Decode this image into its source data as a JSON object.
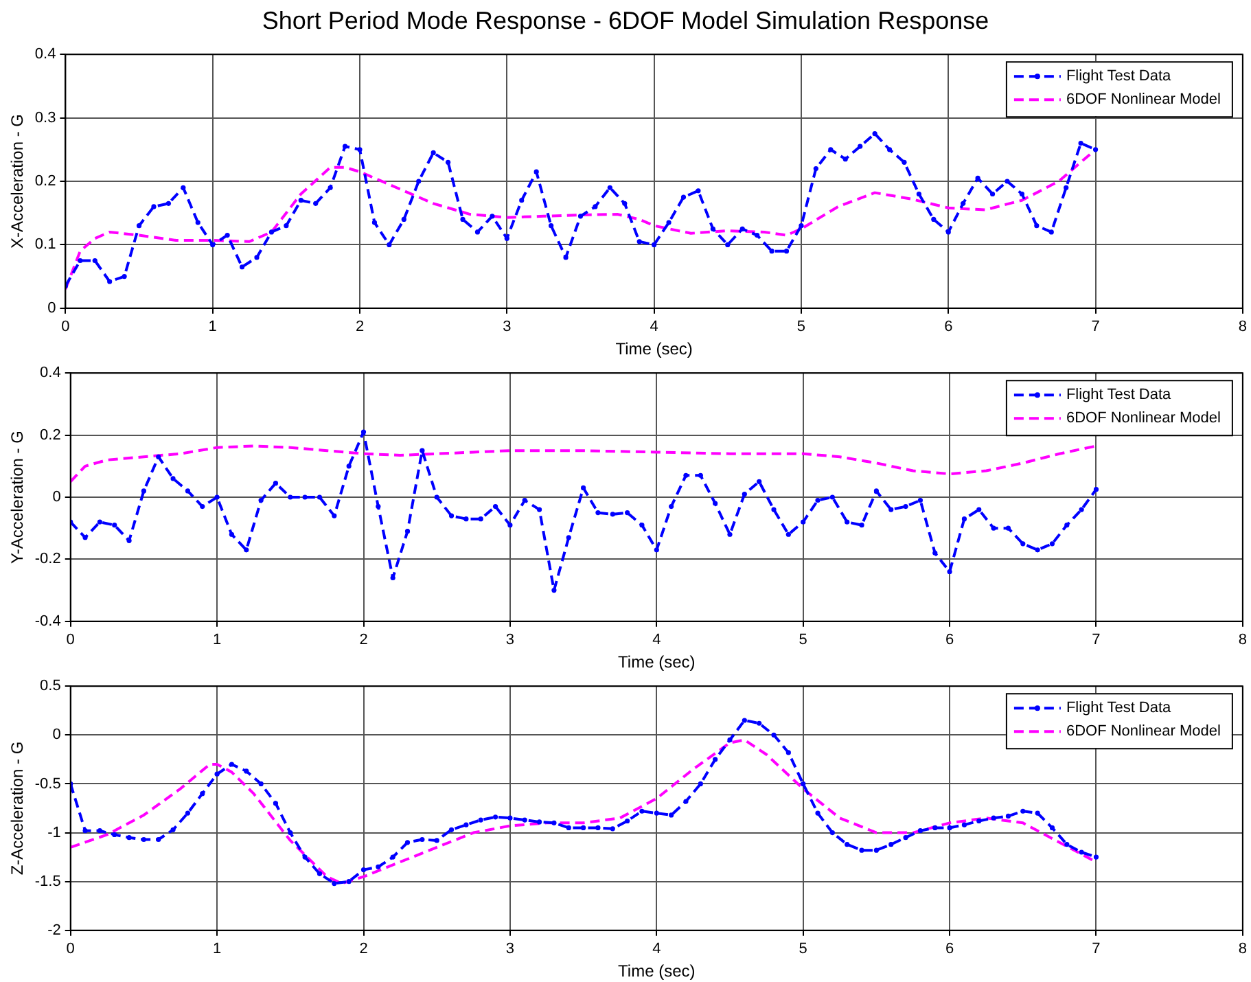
{
  "chart_data": [
    {
      "type": "line",
      "title": "Short Period Mode Response - 6DOF Model Simulation Response",
      "xlabel": "Time (sec)",
      "ylabel": "X-Acceleration - G",
      "xlim": [
        0,
        8
      ],
      "xticks": [
        0,
        1,
        2,
        3,
        4,
        5,
        6,
        7,
        8
      ],
      "ylim": [
        0,
        0.4
      ],
      "yticks": [
        0,
        0.1,
        0.2,
        0.3,
        0.4
      ],
      "grid": true,
      "legend": "top right",
      "line_style": "dashed",
      "series": [
        {
          "name": "Flight Test Data",
          "color": "#0000ff",
          "marker": "circle",
          "x": [
            0,
            0.1,
            0.2,
            0.3,
            0.4,
            0.5,
            0.6,
            0.7,
            0.8,
            0.9,
            1,
            1.1,
            1.2,
            1.3,
            1.4,
            1.5,
            1.6,
            1.7,
            1.8,
            1.9,
            2,
            2.1,
            2.2,
            2.3,
            2.4,
            2.5,
            2.6,
            2.7,
            2.8,
            2.9,
            3,
            3.1,
            3.2,
            3.3,
            3.4,
            3.5,
            3.6,
            3.7,
            3.8,
            3.9,
            4,
            4.1,
            4.2,
            4.3,
            4.4,
            4.5,
            4.6,
            4.7,
            4.8,
            4.9,
            5,
            5.1,
            5.2,
            5.3,
            5.4,
            5.5,
            5.6,
            5.7,
            5.8,
            5.9,
            6,
            6.1,
            6.2,
            6.3,
            6.4,
            6.5,
            6.6,
            6.7,
            6.8,
            6.9,
            7
          ],
          "values": [
            0.035,
            0.075,
            0.075,
            0.042,
            0.05,
            0.13,
            0.16,
            0.165,
            0.19,
            0.135,
            0.1,
            0.115,
            0.065,
            0.08,
            0.12,
            0.13,
            0.17,
            0.165,
            0.19,
            0.255,
            0.25,
            0.135,
            0.1,
            0.14,
            0.2,
            0.245,
            0.23,
            0.14,
            0.12,
            0.145,
            0.11,
            0.17,
            0.215,
            0.13,
            0.08,
            0.145,
            0.16,
            0.19,
            0.165,
            0.105,
            0.1,
            0.135,
            0.175,
            0.185,
            0.125,
            0.1,
            0.125,
            0.115,
            0.09,
            0.09,
            0.13,
            0.22,
            0.25,
            0.235,
            0.255,
            0.275,
            0.25,
            0.23,
            0.18,
            0.14,
            0.12,
            0.165,
            0.205,
            0.18,
            0.2,
            0.18,
            0.13,
            0.12,
            0.19,
            0.26,
            0.25
          ]
        },
        {
          "name": "6DOF Nonlinear Model",
          "color": "#ff00ff",
          "marker": "none",
          "x": [
            0,
            0.1,
            0.2,
            0.3,
            0.5,
            0.75,
            1,
            1.25,
            1.4,
            1.6,
            1.8,
            1.9,
            2,
            2.25,
            2.5,
            2.75,
            3,
            3.25,
            3.5,
            3.75,
            3.9,
            4,
            4.25,
            4.5,
            4.75,
            4.9,
            5,
            5.25,
            5.5,
            5.75,
            6,
            6.25,
            6.5,
            6.75,
            7
          ],
          "values": [
            0.03,
            0.09,
            0.11,
            0.12,
            0.115,
            0.107,
            0.107,
            0.105,
            0.12,
            0.18,
            0.222,
            0.222,
            0.215,
            0.19,
            0.165,
            0.148,
            0.143,
            0.145,
            0.147,
            0.148,
            0.14,
            0.13,
            0.118,
            0.122,
            0.12,
            0.115,
            0.125,
            0.16,
            0.182,
            0.172,
            0.158,
            0.155,
            0.17,
            0.2,
            0.25
          ]
        }
      ]
    },
    {
      "type": "line",
      "xlabel": "Time (sec)",
      "ylabel": "Y-Acceleration - G",
      "xlim": [
        0,
        8
      ],
      "xticks": [
        0,
        1,
        2,
        3,
        4,
        5,
        6,
        7,
        8
      ],
      "ylim": [
        -0.4,
        0.4
      ],
      "yticks": [
        -0.4,
        -0.2,
        0,
        0.2,
        0.4
      ],
      "grid": true,
      "legend": "top right",
      "line_style": "dashed",
      "series": [
        {
          "name": "Flight Test Data",
          "color": "#0000ff",
          "marker": "circle",
          "x": [
            0,
            0.1,
            0.2,
            0.3,
            0.4,
            0.5,
            0.6,
            0.7,
            0.8,
            0.9,
            1,
            1.1,
            1.2,
            1.3,
            1.4,
            1.5,
            1.6,
            1.7,
            1.8,
            1.9,
            2,
            2.1,
            2.2,
            2.3,
            2.4,
            2.5,
            2.6,
            2.7,
            2.8,
            2.9,
            3,
            3.1,
            3.2,
            3.3,
            3.4,
            3.5,
            3.6,
            3.7,
            3.8,
            3.9,
            4,
            4.1,
            4.2,
            4.3,
            4.4,
            4.5,
            4.6,
            4.7,
            4.8,
            4.9,
            5,
            5.1,
            5.2,
            5.3,
            5.4,
            5.5,
            5.6,
            5.7,
            5.8,
            5.9,
            6,
            6.1,
            6.2,
            6.3,
            6.4,
            6.5,
            6.6,
            6.7,
            6.8,
            6.9,
            7
          ],
          "values": [
            -0.08,
            -0.13,
            -0.08,
            -0.09,
            -0.14,
            0.02,
            0.13,
            0.06,
            0.02,
            -0.03,
            0,
            -0.12,
            -0.17,
            -0.01,
            0.045,
            0,
            0,
            0,
            -0.06,
            0.1,
            0.21,
            -0.03,
            -0.26,
            -0.11,
            0.15,
            0,
            -0.06,
            -0.07,
            -0.07,
            -0.03,
            -0.09,
            -0.01,
            -0.04,
            -0.3,
            -0.13,
            0.03,
            -0.05,
            -0.055,
            -0.05,
            -0.09,
            -0.17,
            -0.03,
            0.07,
            0.07,
            -0.02,
            -0.12,
            0.01,
            0.05,
            -0.04,
            -0.12,
            -0.08,
            -0.01,
            0,
            -0.08,
            -0.09,
            0.02,
            -0.04,
            -0.03,
            -0.01,
            -0.18,
            -0.24,
            -0.07,
            -0.04,
            -0.1,
            -0.1,
            -0.15,
            -0.17,
            -0.15,
            -0.09,
            -0.04,
            0.025
          ]
        },
        {
          "name": "6DOF Nonlinear Model",
          "color": "#ff00ff",
          "marker": "none",
          "x": [
            0,
            0.1,
            0.25,
            0.5,
            0.75,
            1,
            1.25,
            1.5,
            1.75,
            2,
            2.25,
            2.5,
            2.75,
            3,
            3.5,
            4,
            4.5,
            5,
            5.25,
            5.5,
            5.75,
            6,
            6.25,
            6.5,
            6.75,
            7
          ],
          "values": [
            0.05,
            0.1,
            0.12,
            0.13,
            0.14,
            0.16,
            0.165,
            0.16,
            0.15,
            0.14,
            0.135,
            0.14,
            0.145,
            0.15,
            0.15,
            0.145,
            0.14,
            0.14,
            0.13,
            0.11,
            0.085,
            0.075,
            0.085,
            0.11,
            0.14,
            0.165
          ]
        }
      ]
    },
    {
      "type": "line",
      "xlabel": "Time (sec)",
      "ylabel": "Z-Acceleration - G",
      "xlim": [
        0,
        8
      ],
      "xticks": [
        0,
        1,
        2,
        3,
        4,
        5,
        6,
        7,
        8
      ],
      "ylim": [
        -2,
        0.5
      ],
      "yticks": [
        -2,
        -1.5,
        -1,
        -0.5,
        0,
        0.5
      ],
      "grid": true,
      "legend": "top right",
      "line_style": "dashed",
      "series": [
        {
          "name": "Flight Test Data",
          "color": "#0000ff",
          "marker": "circle",
          "x": [
            0,
            0.1,
            0.2,
            0.3,
            0.4,
            0.5,
            0.6,
            0.7,
            0.8,
            0.9,
            1,
            1.1,
            1.2,
            1.3,
            1.4,
            1.5,
            1.6,
            1.7,
            1.8,
            1.9,
            2,
            2.1,
            2.2,
            2.3,
            2.4,
            2.5,
            2.6,
            2.7,
            2.8,
            2.9,
            3,
            3.1,
            3.2,
            3.3,
            3.4,
            3.5,
            3.6,
            3.7,
            3.8,
            3.9,
            4,
            4.1,
            4.2,
            4.3,
            4.4,
            4.5,
            4.6,
            4.7,
            4.8,
            4.9,
            5,
            5.1,
            5.2,
            5.3,
            5.4,
            5.5,
            5.6,
            5.7,
            5.8,
            5.9,
            6,
            6.1,
            6.2,
            6.3,
            6.4,
            6.5,
            6.6,
            6.7,
            6.8,
            6.9,
            7
          ],
          "values": [
            -0.5,
            -0.98,
            -0.98,
            -1.02,
            -1.05,
            -1.07,
            -1.07,
            -0.97,
            -0.8,
            -0.6,
            -0.4,
            -0.3,
            -0.37,
            -0.5,
            -0.7,
            -1,
            -1.25,
            -1.42,
            -1.52,
            -1.5,
            -1.38,
            -1.35,
            -1.25,
            -1.1,
            -1.07,
            -1.08,
            -0.97,
            -0.92,
            -0.87,
            -0.84,
            -0.85,
            -0.87,
            -0.89,
            -0.9,
            -0.95,
            -0.95,
            -0.95,
            -0.96,
            -0.88,
            -0.78,
            -0.8,
            -0.82,
            -0.68,
            -0.5,
            -0.25,
            -0.05,
            0.15,
            0.12,
            0,
            -0.18,
            -0.5,
            -0.8,
            -1,
            -1.12,
            -1.18,
            -1.18,
            -1.12,
            -1.05,
            -0.98,
            -0.95,
            -0.95,
            -0.92,
            -0.88,
            -0.85,
            -0.83,
            -0.78,
            -0.8,
            -0.95,
            -1.12,
            -1.2,
            -1.25
          ]
        },
        {
          "name": "6DOF Nonlinear Model",
          "color": "#ff00ff",
          "marker": "none",
          "x": [
            0,
            0.25,
            0.5,
            0.75,
            0.95,
            1,
            1.1,
            1.25,
            1.5,
            1.75,
            1.85,
            2,
            2.25,
            2.5,
            2.75,
            3,
            3.25,
            3.5,
            3.75,
            4,
            4.25,
            4.5,
            4.6,
            4.75,
            5,
            5.25,
            5.5,
            5.75,
            6,
            6.25,
            6.5,
            6.75,
            7
          ],
          "values": [
            -1.15,
            -1.02,
            -0.82,
            -0.55,
            -0.3,
            -0.3,
            -0.38,
            -0.6,
            -1.08,
            -1.45,
            -1.52,
            -1.45,
            -1.3,
            -1.15,
            -1,
            -0.93,
            -0.9,
            -0.9,
            -0.85,
            -0.65,
            -0.35,
            -0.08,
            -0.05,
            -0.2,
            -0.55,
            -0.85,
            -1,
            -1,
            -0.9,
            -0.85,
            -0.9,
            -1.1,
            -1.3
          ]
        }
      ]
    }
  ]
}
